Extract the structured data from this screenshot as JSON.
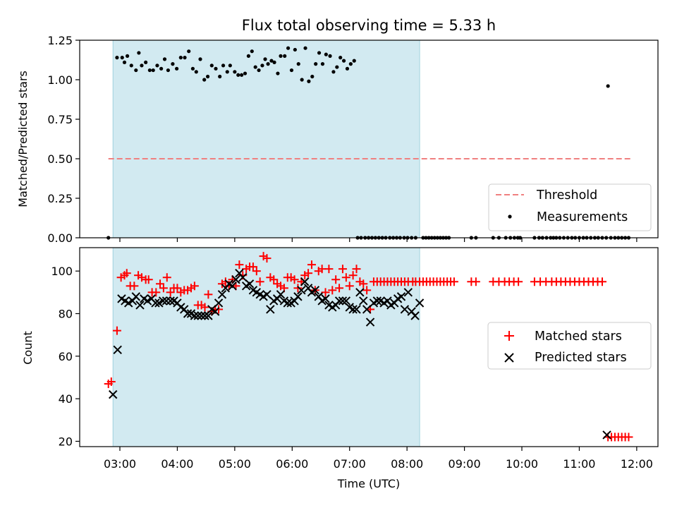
{
  "chart_data": {
    "type": "scatter",
    "title": "Flux total observing time = 5.33 h",
    "xlabel": "Time (UTC)",
    "x_unit": "hours UTC",
    "xlim": [
      2.3,
      12.37
    ],
    "xticks": [
      3,
      4,
      5,
      6,
      7,
      8,
      9,
      10,
      11,
      12
    ],
    "xtick_labels": [
      "03:00",
      "04:00",
      "05:00",
      "06:00",
      "07:00",
      "08:00",
      "09:00",
      "10:00",
      "11:00",
      "12:00"
    ],
    "shaded_interval": {
      "start": 2.88,
      "end": 8.22,
      "color": "#add8e6"
    },
    "panels": [
      {
        "id": "ratio",
        "ylabel": "Matched/Predicted stars",
        "ylim": [
          0,
          1.25
        ],
        "yticks": [
          0,
          0.25,
          0.5,
          0.75,
          1.0,
          1.25
        ],
        "ytick_labels": [
          "0.00",
          "0.25",
          "0.50",
          "0.75",
          "1.00",
          "1.25"
        ],
        "legend_position": "lower-right",
        "threshold": {
          "name": "Threshold",
          "y": 0.5,
          "x_range": [
            2.8,
            11.9
          ],
          "color": "#f08080",
          "style": "dashed"
        },
        "series": [
          {
            "name": "Measurements",
            "marker": "dot",
            "color": "#000000",
            "x": [
              2.8,
              2.95,
              3.04,
              3.08,
              3.13,
              3.2,
              3.28,
              3.33,
              3.38,
              3.45,
              3.52,
              3.58,
              3.65,
              3.72,
              3.78,
              3.84,
              3.92,
              3.99,
              4.06,
              4.13,
              4.2,
              4.27,
              4.33,
              4.4,
              4.47,
              4.53,
              4.6,
              4.67,
              4.74,
              4.8,
              4.87,
              4.92,
              5.0,
              5.06,
              5.12,
              5.18,
              5.24,
              5.3,
              5.36,
              5.42,
              5.48,
              5.53,
              5.58,
              5.64,
              5.69,
              5.75,
              5.8,
              5.87,
              5.93,
              5.99,
              6.05,
              6.11,
              6.17,
              6.23,
              6.29,
              6.35,
              6.41,
              6.47,
              6.53,
              6.59,
              6.66,
              6.72,
              6.78,
              6.84,
              6.9,
              6.96,
              7.02,
              7.08,
              7.14,
              7.2,
              7.27,
              7.33,
              7.39,
              7.45,
              7.51,
              7.57,
              7.63,
              7.7,
              7.76,
              7.82,
              7.88,
              7.95,
              8.01,
              8.08,
              8.15,
              8.28,
              8.33,
              8.38,
              8.43,
              8.48,
              8.53,
              8.58,
              8.63,
              8.68,
              8.73,
              9.12,
              9.2,
              9.5,
              9.6,
              9.72,
              9.8,
              9.87,
              9.93,
              9.97,
              10.22,
              10.3,
              10.36,
              10.43,
              10.5,
              10.55,
              10.6,
              10.66,
              10.73,
              10.8,
              10.87,
              10.93,
              11.0,
              11.07,
              11.13,
              11.2,
              11.27,
              11.33,
              11.4,
              11.47,
              11.5,
              11.55,
              11.62,
              11.68,
              11.74,
              11.8,
              11.86
            ],
            "y": [
              0.0,
              1.14,
              1.14,
              1.11,
              1.15,
              1.09,
              1.06,
              1.17,
              1.09,
              1.11,
              1.06,
              1.06,
              1.09,
              1.07,
              1.13,
              1.06,
              1.1,
              1.07,
              1.14,
              1.14,
              1.18,
              1.07,
              1.05,
              1.13,
              1.0,
              1.02,
              1.09,
              1.07,
              1.02,
              1.09,
              1.05,
              1.09,
              1.05,
              1.03,
              1.03,
              1.04,
              1.15,
              1.18,
              1.08,
              1.06,
              1.09,
              1.13,
              1.1,
              1.12,
              1.11,
              1.04,
              1.15,
              1.15,
              1.2,
              1.06,
              1.19,
              1.1,
              1.0,
              1.2,
              0.99,
              1.02,
              1.1,
              1.17,
              1.1,
              1.16,
              1.15,
              1.05,
              1.08,
              1.14,
              1.12,
              1.07,
              1.1,
              1.12,
              0.0,
              0.0,
              0.0,
              0.0,
              0.0,
              0.0,
              0.0,
              0.0,
              0.0,
              0.0,
              0.0,
              0.0,
              0.0,
              0.0,
              0.0,
              0.0,
              0.0,
              0.0,
              0.0,
              0.0,
              0.0,
              0.0,
              0.0,
              0.0,
              0.0,
              0.0,
              0.0,
              0.0,
              0.0,
              0.0,
              0.0,
              0.0,
              0.0,
              0.0,
              0.0,
              0.0,
              0.0,
              0.0,
              0.0,
              0.0,
              0.0,
              0.0,
              0.0,
              0.0,
              0.0,
              0.0,
              0.0,
              0.0,
              0.0,
              0.0,
              0.0,
              0.0,
              0.0,
              0.0,
              0.0,
              0.0,
              0.96,
              0.0,
              0.0,
              0.0,
              0.0,
              0.0,
              0.0
            ]
          }
        ]
      },
      {
        "id": "count",
        "ylabel": "Count",
        "ylim": [
          17.5,
          111
        ],
        "yticks": [
          20,
          40,
          60,
          80,
          100
        ],
        "ytick_labels": [
          "20",
          "40",
          "60",
          "80",
          "100"
        ],
        "legend_position": "center-right",
        "series": [
          {
            "name": "Matched stars",
            "marker": "plus",
            "color": "#ff0000",
            "x": [
              2.8,
              2.85,
              2.95,
              3.02,
              3.08,
              3.12,
              3.18,
              3.25,
              3.32,
              3.38,
              3.45,
              3.5,
              3.56,
              3.63,
              3.7,
              3.76,
              3.82,
              3.88,
              3.94,
              4.0,
              4.06,
              4.12,
              4.18,
              4.24,
              4.3,
              4.36,
              4.42,
              4.48,
              4.54,
              4.6,
              4.66,
              4.72,
              4.78,
              4.84,
              4.9,
              4.96,
              5.02,
              5.08,
              5.14,
              5.2,
              5.26,
              5.32,
              5.38,
              5.44,
              5.5,
              5.56,
              5.62,
              5.68,
              5.74,
              5.8,
              5.86,
              5.92,
              5.98,
              6.04,
              6.1,
              6.16,
              6.22,
              6.28,
              6.34,
              6.4,
              6.46,
              6.52,
              6.58,
              6.64,
              6.7,
              6.76,
              6.82,
              6.88,
              6.94,
              7.0,
              7.06,
              7.12,
              7.18,
              7.24,
              7.3,
              7.36,
              7.42,
              7.48,
              7.54,
              7.6,
              7.66,
              7.72,
              7.78,
              7.84,
              7.9,
              7.96,
              8.02,
              8.1,
              8.15,
              8.22,
              8.28,
              8.34,
              8.4,
              8.46,
              8.52,
              8.58,
              8.64,
              8.7,
              8.76,
              8.82,
              9.12,
              9.2,
              9.5,
              9.6,
              9.7,
              9.78,
              9.86,
              9.94,
              10.22,
              10.32,
              10.42,
              10.52,
              10.6,
              10.68,
              10.76,
              10.84,
              10.92,
              11.0,
              11.08,
              11.16,
              11.24,
              11.32,
              11.4,
              11.5,
              11.56,
              11.62,
              11.68,
              11.74,
              11.8,
              11.86
            ],
            "y": [
              47,
              48,
              72,
              97,
              98,
              99,
              93,
              93,
              98,
              97,
              96,
              96,
              90,
              90,
              94,
              92,
              97,
              90,
              92,
              92,
              90,
              91,
              91,
              92,
              93,
              84,
              84,
              83,
              89,
              81,
              82,
              82,
              94,
              95,
              93,
              96,
              93,
              103,
              98,
              101,
              102,
              102,
              100,
              95,
              107,
              106,
              97,
              96,
              94,
              93,
              92,
              97,
              97,
              96,
              92,
              95,
              98,
              99,
              103,
              91,
              100,
              101,
              90,
              101,
              91,
              96,
              92,
              101,
              97,
              93,
              98,
              101,
              95,
              94,
              91,
              82,
              95,
              95,
              95,
              95,
              95,
              95,
              95,
              95,
              95,
              95,
              95,
              95,
              95,
              95,
              95,
              95,
              95,
              95,
              95,
              95,
              95,
              95,
              95,
              95,
              95,
              95,
              95,
              95,
              95,
              95,
              95,
              95,
              95,
              95,
              95,
              95,
              95,
              95,
              95,
              95,
              95,
              95,
              95,
              95,
              95,
              95,
              95,
              22,
              22,
              22,
              22,
              22,
              22,
              22
            ]
          },
          {
            "name": "Predicted stars",
            "marker": "x",
            "color": "#000000",
            "x": [
              2.88,
              2.96,
              3.03,
              3.09,
              3.15,
              3.22,
              3.28,
              3.35,
              3.42,
              3.48,
              3.55,
              3.62,
              3.68,
              3.75,
              3.81,
              3.88,
              3.94,
              4.0,
              4.06,
              4.12,
              4.18,
              4.24,
              4.3,
              4.36,
              4.42,
              4.48,
              4.54,
              4.6,
              4.66,
              4.72,
              4.78,
              4.84,
              4.9,
              4.96,
              5.02,
              5.08,
              5.14,
              5.2,
              5.26,
              5.32,
              5.38,
              5.44,
              5.5,
              5.56,
              5.62,
              5.68,
              5.74,
              5.8,
              5.86,
              5.92,
              5.98,
              6.04,
              6.1,
              6.16,
              6.22,
              6.28,
              6.34,
              6.4,
              6.46,
              6.52,
              6.58,
              6.64,
              6.7,
              6.76,
              6.82,
              6.88,
              6.94,
              7.0,
              7.06,
              7.12,
              7.18,
              7.24,
              7.3,
              7.36,
              7.42,
              7.48,
              7.54,
              7.6,
              7.66,
              7.72,
              7.78,
              7.84,
              7.9,
              7.96,
              8.02,
              8.08,
              8.14,
              8.22,
              11.48
            ],
            "y": [
              42,
              63,
              87,
              86,
              85,
              86,
              88,
              84,
              87,
              86,
              87,
              85,
              85,
              86,
              86,
              86,
              86,
              85,
              83,
              82,
              80,
              80,
              79,
              79,
              79,
              79,
              79,
              82,
              81,
              85,
              89,
              92,
              94,
              93,
              96,
              99,
              97,
              93,
              94,
              91,
              90,
              89,
              88,
              89,
              82,
              86,
              87,
              89,
              86,
              85,
              85,
              86,
              88,
              91,
              95,
              92,
              90,
              91,
              88,
              86,
              87,
              84,
              83,
              84,
              86,
              86,
              86,
              83,
              82,
              82,
              90,
              86,
              82,
              76,
              85,
              86,
              86,
              85,
              86,
              84,
              85,
              87,
              88,
              82,
              90,
              81,
              79,
              85,
              23
            ]
          }
        ]
      }
    ]
  }
}
